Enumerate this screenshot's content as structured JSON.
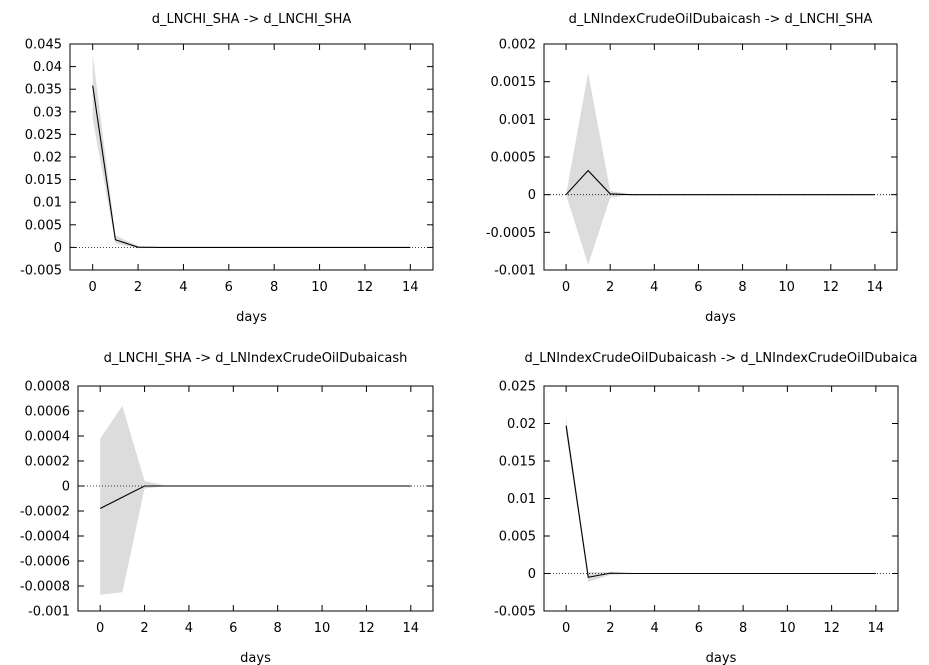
{
  "chart_data": [
    {
      "type": "line",
      "title": "d_LNCHI_SHA -> d_LNCHI_SHA",
      "xlabel": "days",
      "ylabel": "",
      "x": [
        0,
        1,
        2,
        3,
        4,
        5,
        6,
        7,
        8,
        9,
        10,
        11,
        12,
        13,
        14
      ],
      "xlim": [
        -1,
        15
      ],
      "xticks": [
        0,
        2,
        4,
        6,
        8,
        10,
        12,
        14
      ],
      "xtick_labels": [
        "0",
        "2",
        "4",
        "6",
        "8",
        "10",
        "12",
        "14"
      ],
      "ylim": [
        -0.005,
        0.045
      ],
      "yticks": [
        -0.005,
        0,
        0.005,
        0.01,
        0.015,
        0.02,
        0.025,
        0.03,
        0.035,
        0.04,
        0.045
      ],
      "ytick_labels": [
        "-0.005",
        "0",
        "0.005",
        "0.01",
        "0.015",
        "0.02",
        "0.025",
        "0.03",
        "0.035",
        "0.04",
        "0.045"
      ],
      "series": [
        {
          "role": "response",
          "color": "#000000",
          "values": [
            0.0358,
            0.0017,
            5e-05,
            0,
            0,
            0,
            0,
            0,
            0,
            0,
            0,
            0,
            0,
            0,
            0
          ]
        }
      ],
      "band": {
        "color": "#dcdcdc",
        "lower": [
          0.0285,
          0.0009,
          -0.0002,
          0,
          0,
          0,
          0,
          0,
          0,
          0,
          0,
          0,
          0,
          0,
          0
        ],
        "upper": [
          0.0428,
          0.0027,
          0.0003,
          0,
          0,
          0,
          0,
          0,
          0,
          0,
          0,
          0,
          0,
          0,
          0
        ]
      },
      "zero_line": true,
      "grid": false
    },
    {
      "type": "line",
      "title": "d_LNIndexCrudeOilDubaicash -> d_LNCHI_SHA",
      "xlabel": "days",
      "ylabel": "",
      "x": [
        0,
        1,
        2,
        3,
        4,
        5,
        6,
        7,
        8,
        9,
        10,
        11,
        12,
        13,
        14
      ],
      "xlim": [
        -1,
        15
      ],
      "xticks": [
        0,
        2,
        4,
        6,
        8,
        10,
        12,
        14
      ],
      "xtick_labels": [
        "0",
        "2",
        "4",
        "6",
        "8",
        "10",
        "12",
        "14"
      ],
      "ylim": [
        -0.001,
        0.002
      ],
      "yticks": [
        -0.001,
        -0.0005,
        0,
        0.0005,
        0.001,
        0.0015,
        0.002
      ],
      "ytick_labels": [
        "-0.001",
        "-0.0005",
        "0",
        "0.0005",
        "0.001",
        "0.0015",
        "0.002"
      ],
      "series": [
        {
          "role": "response",
          "color": "#000000",
          "values": [
            0,
            0.00032,
            1e-05,
            0,
            0,
            0,
            0,
            0,
            0,
            0,
            0,
            0,
            0,
            0,
            0
          ]
        }
      ],
      "band": {
        "color": "#dcdcdc",
        "lower": [
          0,
          -0.00093,
          -4e-05,
          0,
          0,
          0,
          0,
          0,
          0,
          0,
          0,
          0,
          0,
          0,
          0
        ],
        "upper": [
          0,
          0.00162,
          5e-05,
          0,
          0,
          0,
          0,
          0,
          0,
          0,
          0,
          0,
          0,
          0,
          0
        ]
      },
      "zero_line": true,
      "grid": false
    },
    {
      "type": "line",
      "title": "d_LNCHI_SHA -> d_LNIndexCrudeOilDubaicash",
      "xlabel": "days",
      "ylabel": "",
      "x": [
        0,
        1,
        2,
        3,
        4,
        5,
        6,
        7,
        8,
        9,
        10,
        11,
        12,
        13,
        14
      ],
      "xlim": [
        -1,
        15
      ],
      "xticks": [
        0,
        2,
        4,
        6,
        8,
        10,
        12,
        14
      ],
      "xtick_labels": [
        "0",
        "2",
        "4",
        "6",
        "8",
        "10",
        "12",
        "14"
      ],
      "ylim": [
        -0.001,
        0.0008
      ],
      "yticks": [
        -0.001,
        -0.0008,
        -0.0006,
        -0.0004,
        -0.0002,
        0,
        0.0002,
        0.0004,
        0.0006,
        0.0008
      ],
      "ytick_labels": [
        "-0.001",
        "-0.0008",
        "-0.0006",
        "-0.0004",
        "-0.0002",
        "0",
        "0.0002",
        "0.0004",
        "0.0006",
        "0.0008"
      ],
      "series": [
        {
          "role": "response",
          "color": "#000000",
          "values": [
            -0.00018,
            -9e-05,
            0,
            0,
            0,
            0,
            0,
            0,
            0,
            0,
            0,
            0,
            0,
            0,
            0
          ]
        }
      ],
      "band": {
        "color": "#dcdcdc",
        "lower": [
          -0.00087,
          -0.00085,
          -2e-05,
          0,
          0,
          0,
          0,
          0,
          0,
          0,
          0,
          0,
          0,
          0,
          0
        ],
        "upper": [
          0.00038,
          0.00064,
          4e-05,
          0,
          0,
          0,
          0,
          0,
          0,
          0,
          0,
          0,
          0,
          0,
          0
        ]
      },
      "zero_line": true,
      "grid": false
    },
    {
      "type": "line",
      "title": "d_LNIndexCrudeOilDubaicash -> d_LNIndexCrudeOilDubaica",
      "xlabel": "days",
      "ylabel": "",
      "x": [
        0,
        1,
        2,
        3,
        4,
        5,
        6,
        7,
        8,
        9,
        10,
        11,
        12,
        13,
        14
      ],
      "xlim": [
        -1,
        15
      ],
      "xticks": [
        0,
        2,
        4,
        6,
        8,
        10,
        12,
        14
      ],
      "xtick_labels": [
        "0",
        "2",
        "4",
        "6",
        "8",
        "10",
        "12",
        "14"
      ],
      "ylim": [
        -0.005,
        0.025
      ],
      "yticks": [
        -0.005,
        0,
        0.005,
        0.01,
        0.015,
        0.02,
        0.025
      ],
      "ytick_labels": [
        "-0.005",
        "0",
        "0.005",
        "0.01",
        "0.015",
        "0.02",
        "0.025"
      ],
      "series": [
        {
          "role": "response",
          "color": "#000000",
          "values": [
            0.0197,
            -0.0005,
            5e-05,
            0,
            0,
            0,
            0,
            0,
            0,
            0,
            0,
            0,
            0,
            0,
            0
          ]
        }
      ],
      "band": {
        "color": "#dcdcdc",
        "lower": [
          0.0187,
          -0.0011,
          -0.0002,
          0,
          0,
          0,
          0,
          0,
          0,
          0,
          0,
          0,
          0,
          0,
          0
        ],
        "upper": [
          0.0208,
          0.0002,
          0.0002,
          0,
          0,
          0,
          0,
          0,
          0,
          0,
          0,
          0,
          0,
          0,
          0
        ]
      },
      "zero_line": true,
      "grid": false
    }
  ]
}
